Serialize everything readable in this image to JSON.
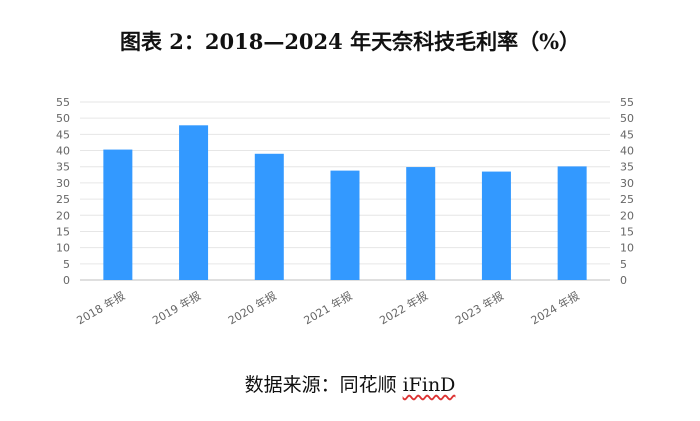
{
  "title": "图表 2：2018—2024 年天奈科技毛利率（%）",
  "source": {
    "prefix": "数据来源：同花顺 ",
    "brand": "iFinD"
  },
  "chart_data": {
    "type": "bar",
    "categories": [
      "2018 年报",
      "2019 年报",
      "2020 年报",
      "2021 年报",
      "2022 年报",
      "2023 年报",
      "2024 年报"
    ],
    "values": [
      40.3,
      47.8,
      39.0,
      33.8,
      34.9,
      33.5,
      35.1
    ],
    "xlabel": "",
    "ylabel": "",
    "ylim": [
      0,
      55
    ],
    "yticks": [
      0,
      5,
      10,
      15,
      20,
      25,
      30,
      35,
      40,
      45,
      50,
      55
    ],
    "grid": true,
    "legend": "none",
    "secondary_axis": true,
    "bar_color": "#3399FF"
  }
}
